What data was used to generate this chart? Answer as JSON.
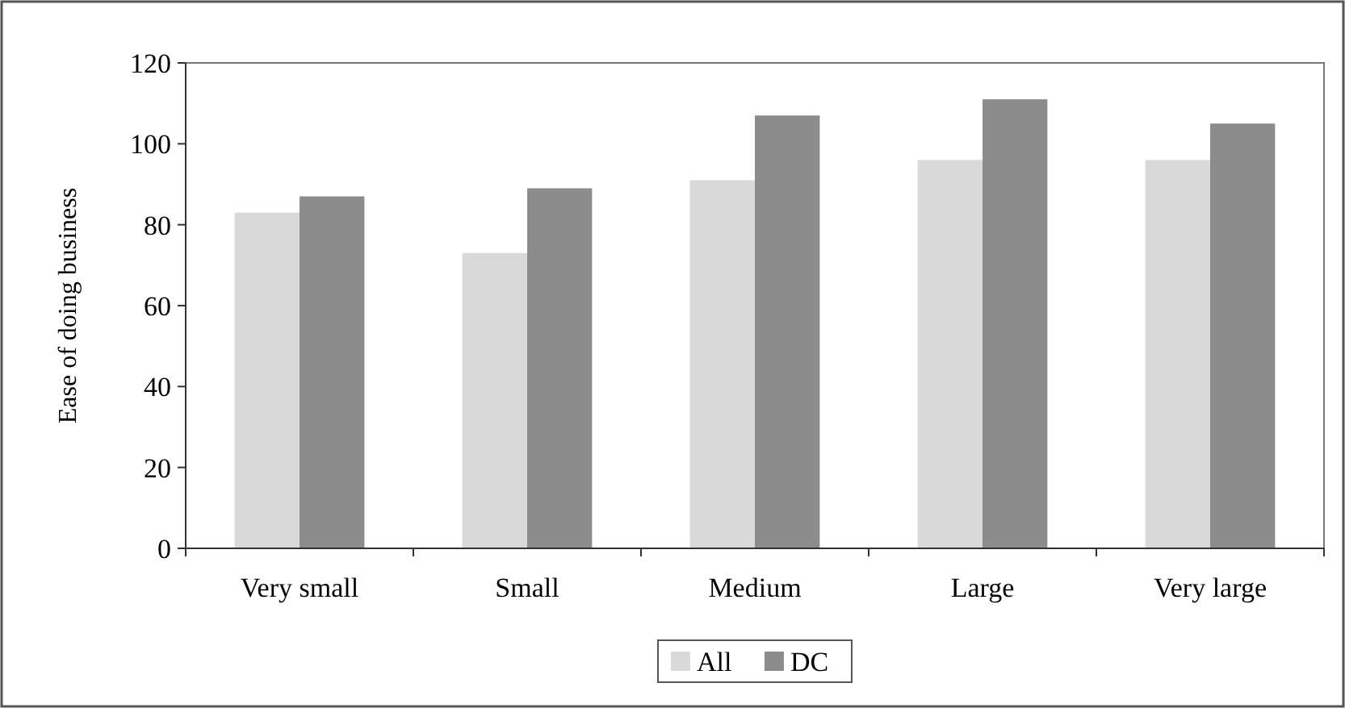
{
  "chart_data": {
    "type": "bar",
    "ylabel": "Ease of doing business",
    "categories": [
      "Very small",
      "Small",
      "Medium",
      "Large",
      "Very large"
    ],
    "series": [
      {
        "name": "All",
        "color": "#d9d9d9",
        "values": [
          83,
          73,
          91,
          96,
          96
        ]
      },
      {
        "name": "DC",
        "color": "#8c8c8c",
        "values": [
          87,
          89,
          107,
          111,
          105
        ]
      }
    ],
    "ylim": [
      0,
      120
    ],
    "yticks": [
      0,
      20,
      40,
      60,
      80,
      100,
      120
    ],
    "grid": false,
    "legend": "bottom"
  }
}
